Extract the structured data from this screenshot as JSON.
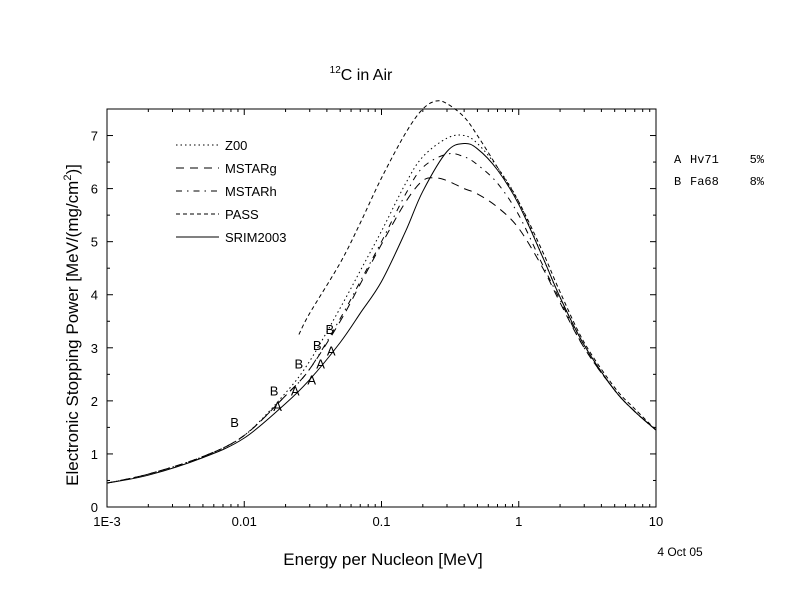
{
  "chart_data": {
    "type": "line",
    "title": {
      "superscript": "12",
      "text": "C in Air"
    },
    "xlabel": "Energy per Nucleon [MeV]",
    "ylabel": {
      "main": "Electronic Stopping Power [MeV/(mg/cm",
      "superscript": "2",
      "tail": ")]"
    },
    "x_scale": "log",
    "xlim": [
      0.001,
      10
    ],
    "ylim": [
      0,
      7.5
    ],
    "x_ticks": [
      {
        "value": 0.001,
        "label": "1E-3"
      },
      {
        "value": 0.01,
        "label": "0.01"
      },
      {
        "value": 0.1,
        "label": "0.1"
      },
      {
        "value": 1,
        "label": "1"
      },
      {
        "value": 10,
        "label": "10"
      }
    ],
    "y_ticks": [
      {
        "value": 0,
        "label": "0"
      },
      {
        "value": 1,
        "label": "1"
      },
      {
        "value": 2,
        "label": "2"
      },
      {
        "value": 3,
        "label": "3"
      },
      {
        "value": 4,
        "label": "4"
      },
      {
        "value": 5,
        "label": "5"
      },
      {
        "value": 6,
        "label": "6"
      },
      {
        "value": 7,
        "label": "7"
      }
    ],
    "grid": false,
    "legend_position": "top-left",
    "series": [
      {
        "name": "Z00",
        "dash": "1.5,3",
        "x": [
          0.001,
          0.002,
          0.005,
          0.01,
          0.02,
          0.03,
          0.05,
          0.07,
          0.1,
          0.15,
          0.2,
          0.3,
          0.4,
          0.5,
          0.7,
          1,
          1.5,
          2,
          3,
          5,
          7,
          10
        ],
        "y": [
          0.45,
          0.62,
          0.95,
          1.35,
          2.15,
          2.75,
          3.75,
          4.45,
          5.2,
          6.1,
          6.6,
          6.95,
          7.0,
          6.85,
          6.4,
          5.75,
          4.7,
          3.95,
          3.05,
          2.2,
          1.8,
          1.45
        ]
      },
      {
        "name": "MSTARg",
        "dash": "8,6",
        "x": [
          0.001,
          0.002,
          0.005,
          0.01,
          0.02,
          0.03,
          0.05,
          0.07,
          0.1,
          0.15,
          0.2,
          0.25,
          0.3,
          0.4,
          0.5,
          0.7,
          1,
          1.5,
          2,
          3,
          5,
          7,
          10
        ],
        "y": [
          0.45,
          0.62,
          0.95,
          1.35,
          2.1,
          2.6,
          3.5,
          4.2,
          4.95,
          5.75,
          6.15,
          6.2,
          6.15,
          6.0,
          5.9,
          5.65,
          5.25,
          4.5,
          3.85,
          3.0,
          2.2,
          1.8,
          1.45
        ]
      },
      {
        "name": "MSTARh",
        "dash": "6,5,1.5,5",
        "x": [
          0.001,
          0.002,
          0.005,
          0.01,
          0.02,
          0.03,
          0.05,
          0.07,
          0.1,
          0.15,
          0.2,
          0.3,
          0.4,
          0.5,
          0.7,
          1,
          1.5,
          2,
          3,
          5,
          7,
          10
        ],
        "y": [
          0.45,
          0.62,
          0.95,
          1.35,
          2.1,
          2.6,
          3.55,
          4.25,
          5.0,
          5.9,
          6.4,
          6.65,
          6.6,
          6.45,
          6.1,
          5.5,
          4.55,
          3.9,
          3.0,
          2.2,
          1.8,
          1.45
        ]
      },
      {
        "name": "PASS",
        "dash": "4,3",
        "x": [
          0.025,
          0.03,
          0.05,
          0.07,
          0.1,
          0.15,
          0.2,
          0.25,
          0.3,
          0.4,
          0.5,
          0.7,
          1,
          1.5,
          2,
          3,
          5,
          7,
          10
        ],
        "y": [
          3.25,
          3.65,
          4.6,
          5.35,
          6.2,
          7.05,
          7.5,
          7.65,
          7.6,
          7.35,
          7.0,
          6.4,
          5.75,
          4.8,
          4.05,
          3.1,
          2.25,
          1.85,
          1.45
        ]
      },
      {
        "name": "SRIM2003",
        "dash": "",
        "x": [
          0.001,
          0.002,
          0.005,
          0.01,
          0.02,
          0.03,
          0.05,
          0.07,
          0.1,
          0.15,
          0.2,
          0.3,
          0.4,
          0.5,
          0.7,
          1,
          1.5,
          2,
          3,
          5,
          7,
          10
        ],
        "y": [
          0.45,
          0.6,
          0.93,
          1.3,
          1.95,
          2.4,
          3.1,
          3.65,
          4.25,
          5.2,
          5.95,
          6.7,
          6.85,
          6.75,
          6.35,
          5.7,
          4.7,
          3.95,
          3.05,
          2.2,
          1.8,
          1.45
        ]
      }
    ],
    "markers": [
      {
        "label": "B",
        "x": 0.0085,
        "y": 1.6
      },
      {
        "label": "B",
        "x": 0.0165,
        "y": 2.2
      },
      {
        "label": "A",
        "x": 0.0175,
        "y": 1.9
      },
      {
        "label": "A",
        "x": 0.0235,
        "y": 2.2
      },
      {
        "label": "B",
        "x": 0.025,
        "y": 2.7
      },
      {
        "label": "A",
        "x": 0.031,
        "y": 2.4
      },
      {
        "label": "B",
        "x": 0.034,
        "y": 3.05
      },
      {
        "label": "A",
        "x": 0.036,
        "y": 2.7
      },
      {
        "label": "B",
        "x": 0.042,
        "y": 3.35
      },
      {
        "label": "A",
        "x": 0.043,
        "y": 2.95
      }
    ],
    "reference_legend": [
      {
        "key": "A",
        "source": "Hv71",
        "uncertainty": "5%"
      },
      {
        "key": "B",
        "source": "Fa68",
        "uncertainty": "8%"
      }
    ],
    "date_stamp": "4 Oct 05"
  }
}
